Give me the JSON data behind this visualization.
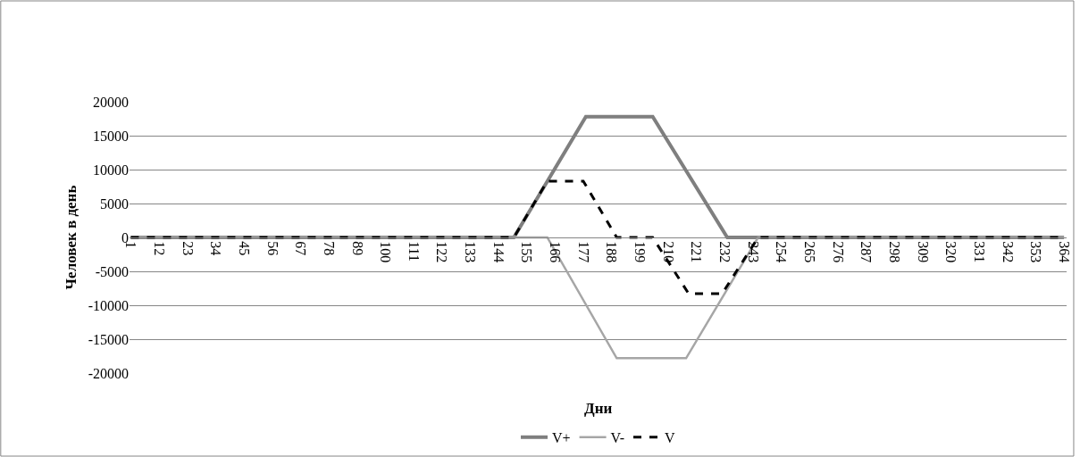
{
  "chart_data": {
    "type": "line",
    "xlabel": "Дни",
    "ylabel": "Человек в день",
    "xlim": [
      0.5,
      365
    ],
    "xticks": [
      1,
      12,
      23,
      34,
      45,
      56,
      67,
      78,
      89,
      100,
      111,
      122,
      133,
      144,
      155,
      166,
      177,
      188,
      199,
      210,
      221,
      232,
      243,
      254,
      265,
      276,
      287,
      298,
      309,
      320,
      331,
      342,
      353,
      364
    ],
    "ylim": [
      -20000,
      20000
    ],
    "yticks": [
      -20000,
      -15000,
      -10000,
      -5000,
      0,
      5000,
      10000,
      15000,
      20000
    ],
    "grid": "y",
    "legend": "bottom",
    "marker": "none",
    "series": [
      {
        "name": "V+",
        "color": "#7f7f7f",
        "line_style": "solid",
        "x": [
          1,
          150,
          178,
          204,
          233,
          364
        ],
        "values": [
          0,
          0,
          17800,
          17800,
          0,
          0
        ]
      },
      {
        "name": "V-",
        "color": "#a6a6a6",
        "line_style": "solid",
        "x": [
          1,
          163,
          190,
          217,
          245,
          364
        ],
        "values": [
          0,
          0,
          -17800,
          -17800,
          0,
          0
        ]
      },
      {
        "name": "V",
        "color": "#000000",
        "line_style": "dashed",
        "x": [
          1,
          150,
          163,
          177,
          190,
          204,
          218,
          231,
          245,
          364
        ],
        "values": [
          0,
          0,
          8300,
          8300,
          0,
          0,
          -8300,
          -8300,
          0,
          0
        ]
      }
    ]
  }
}
